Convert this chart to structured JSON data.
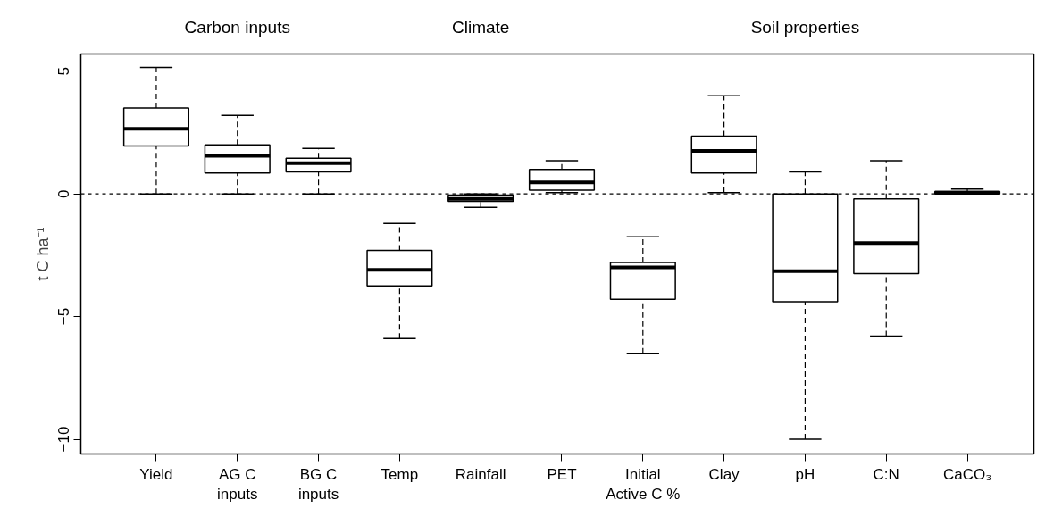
{
  "chart_data": {
    "type": "box",
    "ylabel": "t C ha⁻¹",
    "categories": [
      "Yield",
      "AG C\ninputs",
      "BG C\ninputs",
      "Temp",
      "Rainfall",
      "PET",
      "Initial\nActive C %",
      "Clay",
      "pH",
      "C:N",
      "CaCO₃"
    ],
    "boxes": [
      {
        "low": 0,
        "q1": 1.95,
        "median": 2.65,
        "q3": 3.5,
        "high": 5.15
      },
      {
        "low": 0,
        "q1": 0.85,
        "median": 1.55,
        "q3": 2.0,
        "high": 3.2
      },
      {
        "low": 0,
        "q1": 0.9,
        "median": 1.25,
        "q3": 1.45,
        "high": 1.85
      },
      {
        "low": -5.9,
        "q1": -3.75,
        "median": -3.1,
        "q3": -2.3,
        "high": -1.2
      },
      {
        "low": -0.55,
        "q1": -0.3,
        "median": -0.2,
        "q3": -0.05,
        "high": 0
      },
      {
        "low": 0.05,
        "q1": 0.15,
        "median": 0.47,
        "q3": 1.0,
        "high": 1.35
      },
      {
        "low": -6.5,
        "q1": -4.3,
        "median": -3.0,
        "q3": -2.8,
        "high": -1.75
      },
      {
        "low": 0.05,
        "q1": 0.85,
        "median": 1.75,
        "q3": 2.35,
        "high": 4.0
      },
      {
        "low": -10.0,
        "q1": -4.4,
        "median": -3.15,
        "q3": 0,
        "high": 0.9
      },
      {
        "low": -5.8,
        "q1": -3.25,
        "median": -2.0,
        "q3": -0.2,
        "high": 1.35
      },
      {
        "low": 0,
        "q1": 0,
        "median": 0.05,
        "q3": 0.1,
        "high": 0.2
      }
    ],
    "color": "#ffffff",
    "ylim": [
      -10.6,
      5.7
    ],
    "yticks": [
      -10,
      -5,
      0,
      5
    ],
    "grid": false,
    "ref_lines": [
      {
        "axis": "y",
        "value": 0,
        "line_style": "dashed",
        "color": "#000000"
      }
    ],
    "annotations": [
      "Carbon inputs",
      "Climate",
      "Soil properties"
    ]
  }
}
